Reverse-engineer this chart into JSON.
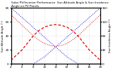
{
  "title": "Solar PV/Inverter Performance  Sun Altitude Angle & Sun Incidence Angle on PV Panels",
  "ylabel_left": "Sun Altitude Angle (°)",
  "ylabel_right": "Sun Incidence Angle (°)",
  "x_start": 4,
  "x_end": 20,
  "x_ticks": [
    4,
    6,
    8,
    10,
    12,
    14,
    16,
    18,
    20
  ],
  "y_left_min": 0,
  "y_left_max": 80,
  "y_right_min": 0,
  "y_right_max": 160,
  "background_color": "#ffffff",
  "grid_color": "#aaaaaa",
  "blue_color": "#0000dd",
  "red_color": "#dd0000",
  "title_fontsize": 3.0,
  "tick_fontsize": 3.0,
  "label_fontsize": 3.0,
  "blue_diag1_x": [
    4,
    6,
    8,
    10,
    12,
    14,
    16,
    18,
    20
  ],
  "blue_diag1_y": [
    80,
    66,
    52,
    38,
    24,
    10,
    0,
    0,
    0
  ],
  "blue_diag2_x": [
    4,
    6,
    8,
    10,
    12,
    14,
    16,
    18,
    20
  ],
  "blue_diag2_y": [
    0,
    0,
    0,
    10,
    24,
    38,
    52,
    66,
    80
  ],
  "red_arch_x": [
    4,
    5,
    6,
    7,
    8,
    9,
    10,
    11,
    12,
    13,
    14,
    15,
    16,
    17,
    18,
    19,
    20
  ],
  "red_arch_y": [
    10,
    25,
    40,
    60,
    80,
    95,
    105,
    110,
    112,
    110,
    105,
    95,
    80,
    60,
    40,
    25,
    10
  ],
  "red_u_x": [
    4,
    5,
    6,
    7,
    8,
    9,
    10,
    11,
    12,
    13,
    14,
    15,
    16,
    17,
    18,
    19,
    20
  ],
  "red_u_y": [
    140,
    125,
    110,
    95,
    80,
    68,
    58,
    52,
    50,
    52,
    58,
    68,
    80,
    95,
    110,
    125,
    140
  ]
}
